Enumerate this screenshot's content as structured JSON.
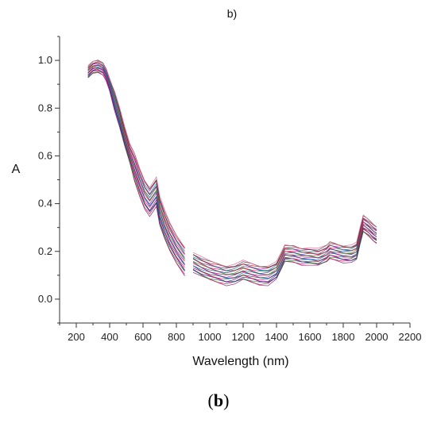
{
  "chart_data": {
    "type": "line",
    "title": "b)",
    "xlabel": "Wavelength (nm)",
    "ylabel": "A",
    "xlim": [
      100,
      2200
    ],
    "ylim": [
      -0.1,
      1.1
    ],
    "x_ticks": [
      200,
      400,
      600,
      800,
      1000,
      1200,
      1400,
      1600,
      1800,
      2000,
      2200
    ],
    "y_ticks": [
      0.0,
      0.2,
      0.4,
      0.6,
      0.8,
      1.0
    ],
    "gap": [
      860,
      900
    ],
    "grid": false,
    "series_count": 20,
    "series_colors": [
      "#7b1f6f",
      "#c2185b",
      "#2e7d32",
      "#1a237e",
      "#6a1b9a",
      "#d81b60",
      "#5d4037",
      "#0277bd",
      "#8e24aa",
      "#ad1457",
      "#455a64",
      "#558b2f",
      "#283593",
      "#e91e63",
      "#6d4c41",
      "#00838f",
      "#9c27b0",
      "#b71c1c",
      "#37474f",
      "#f06292"
    ],
    "representative_spectrum": {
      "x": [
        270,
        300,
        330,
        360,
        380,
        400,
        430,
        460,
        490,
        520,
        550,
        580,
        610,
        640,
        660,
        680,
        700,
        730,
        760,
        800,
        850,
        900,
        950,
        1000,
        1050,
        1100,
        1150,
        1200,
        1250,
        1300,
        1350,
        1400,
        1430,
        1450,
        1500,
        1550,
        1600,
        1650,
        1700,
        1720,
        1750,
        1800,
        1850,
        1880,
        1900,
        1920,
        1950,
        1980,
        2000
      ],
      "y": [
        0.95,
        0.97,
        0.975,
        0.965,
        0.94,
        0.9,
        0.83,
        0.76,
        0.68,
        0.61,
        0.55,
        0.49,
        0.44,
        0.41,
        0.43,
        0.45,
        0.37,
        0.31,
        0.26,
        0.21,
        0.16,
        0.155,
        0.135,
        0.12,
        0.11,
        0.1,
        0.105,
        0.12,
        0.11,
        0.1,
        0.1,
        0.12,
        0.16,
        0.19,
        0.19,
        0.18,
        0.18,
        0.175,
        0.19,
        0.205,
        0.2,
        0.19,
        0.19,
        0.2,
        0.26,
        0.315,
        0.3,
        0.28,
        0.27
      ]
    }
  },
  "caption": {
    "open": "(",
    "letter": "b",
    "close": ")"
  }
}
